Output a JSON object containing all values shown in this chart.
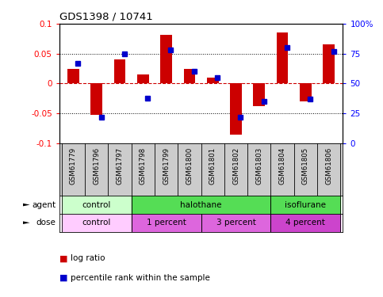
{
  "title": "GDS1398 / 10741",
  "samples": [
    "GSM61779",
    "GSM61796",
    "GSM61797",
    "GSM61798",
    "GSM61799",
    "GSM61800",
    "GSM61801",
    "GSM61802",
    "GSM61803",
    "GSM61804",
    "GSM61805",
    "GSM61806"
  ],
  "log_ratio": [
    0.025,
    -0.052,
    0.04,
    0.015,
    0.082,
    0.025,
    0.01,
    -0.085,
    -0.038,
    0.085,
    -0.03,
    0.065
  ],
  "percentile": [
    67,
    22,
    75,
    38,
    78,
    60,
    55,
    22,
    35,
    80,
    37,
    77
  ],
  "agent_groups": [
    {
      "label": "control",
      "start": 0,
      "end": 3,
      "color": "#ccffcc"
    },
    {
      "label": "halothane",
      "start": 3,
      "end": 9,
      "color": "#66dd66"
    },
    {
      "label": "isoflurane",
      "start": 9,
      "end": 12,
      "color": "#66dd66"
    }
  ],
  "dose_groups": [
    {
      "label": "control",
      "start": 0,
      "end": 3,
      "color": "#ffccff"
    },
    {
      "label": "1 percent",
      "start": 3,
      "end": 6,
      "color": "#ee88ee"
    },
    {
      "label": "3 percent",
      "start": 6,
      "end": 9,
      "color": "#ee88ee"
    },
    {
      "label": "4 percent",
      "start": 9,
      "end": 12,
      "color": "#ee55ee"
    }
  ],
  "ylim_left": [
    -0.1,
    0.1
  ],
  "ylim_right": [
    0,
    100
  ],
  "yticks_left": [
    -0.1,
    -0.05,
    0.0,
    0.05,
    0.1
  ],
  "yticks_right": [
    0,
    25,
    50,
    75,
    100
  ],
  "bar_color": "#cc0000",
  "dot_color": "#0000cc",
  "bg_color": "#ffffff",
  "label_bg": "#cccccc",
  "agent_control_color": "#ccffcc",
  "agent_halothane_color": "#55dd55",
  "agent_isoflurane_color": "#55dd55",
  "dose_control_color": "#ffccff",
  "dose_1pct_color": "#dd66dd",
  "dose_3pct_color": "#dd66dd",
  "dose_4pct_color": "#cc44cc"
}
